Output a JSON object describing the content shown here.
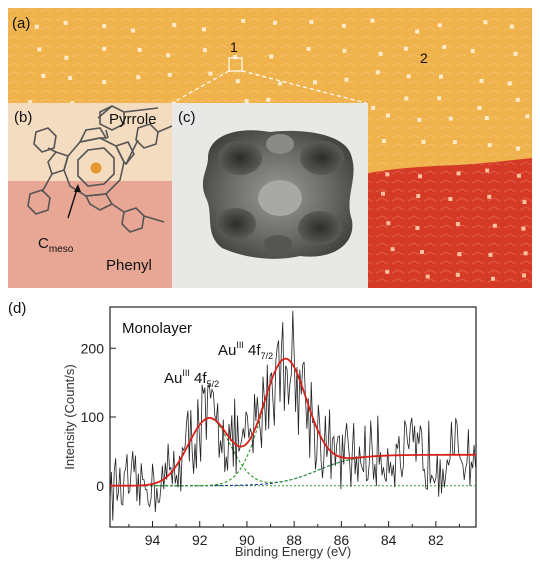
{
  "panels": {
    "a": "(a)",
    "b": "(b)",
    "c": "(c)",
    "d": "(d)"
  },
  "stm": {
    "marker_1": "1",
    "marker_2": "2",
    "colors": {
      "terrace_upper": "#f0b24a",
      "terrace_lower": "#d53a26",
      "inset_b_top": "#f4dcc0",
      "inset_b_bottom": "#e8a695",
      "inset_c_bg": "#e8e8e6",
      "inset_c_molecule": "#4a4a4a"
    }
  },
  "molecule": {
    "pyrrole": "Pyrrole",
    "phenyl": "Phenyl",
    "c_meso_main": "C",
    "c_meso_sub": "meso",
    "center_atom_color": "#e39a2a"
  },
  "chart_data": {
    "type": "line",
    "title": "Monolayer",
    "xlabel": "Binding Energy (eV)",
    "ylabel": "Intensity (Count/s)",
    "xlim": [
      95.8,
      80.3
    ],
    "ylim": [
      -60,
      260
    ],
    "x_ticks": [
      94,
      92,
      90,
      88,
      86,
      84,
      82
    ],
    "y_ticks": [
      0,
      100,
      200
    ],
    "annotations": [
      {
        "main": "Au",
        "sup": "III",
        "rest": " 4f",
        "sub": "7/2"
      },
      {
        "main": "Au",
        "sup": "III",
        "rest": " 4f",
        "sub": "5/2"
      }
    ],
    "peaks": [
      {
        "name": "Au(III) 4f7/2",
        "center": 88.4,
        "height": 178,
        "fwhm": 2.2
      },
      {
        "name": "Au(III) 4f5/2",
        "center": 91.6,
        "height": 98,
        "fwhm": 2.1
      }
    ],
    "background": {
      "step_center": 87.0,
      "low_be_level": 45,
      "high_be_level": 0
    },
    "colors": {
      "raw": "#222222",
      "fit": "#d9201a",
      "components": "#2e9a2e",
      "background": "#2233aa",
      "baseline": "#2e9a2e"
    }
  }
}
